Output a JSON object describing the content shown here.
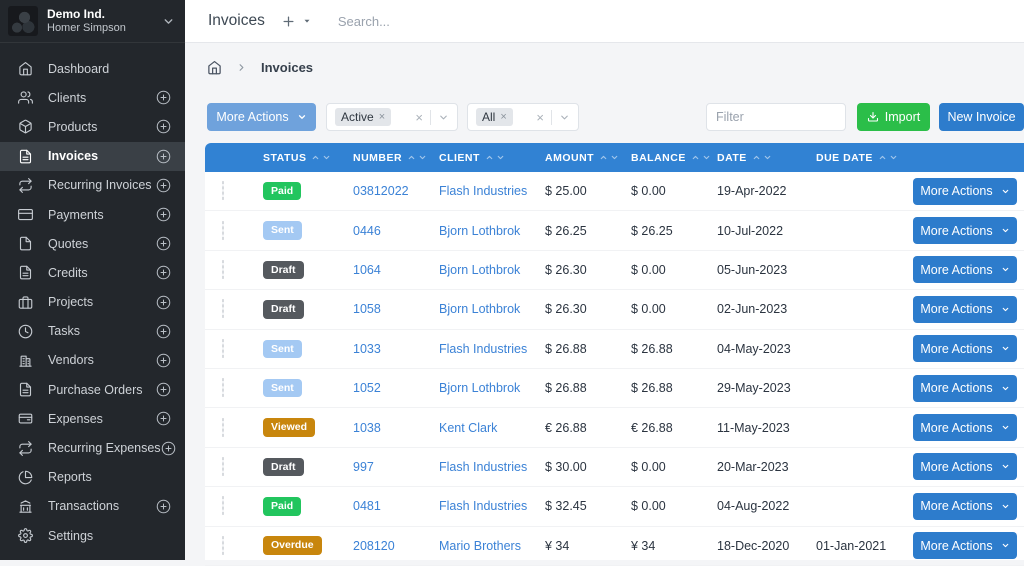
{
  "brand": {
    "company": "Demo Ind.",
    "user": "Homer Simpson"
  },
  "topbar": {
    "title": "Invoices",
    "search_placeholder": "Search..."
  },
  "sidebar": {
    "items": [
      {
        "label": "Dashboard",
        "icon": "home",
        "plus": false,
        "active": false
      },
      {
        "label": "Clients",
        "icon": "users",
        "plus": true,
        "active": false
      },
      {
        "label": "Products",
        "icon": "package",
        "plus": true,
        "active": false
      },
      {
        "label": "Invoices",
        "icon": "file-text",
        "plus": true,
        "active": true
      },
      {
        "label": "Recurring Invoices",
        "icon": "repeat",
        "plus": true,
        "active": false
      },
      {
        "label": "Payments",
        "icon": "credit-card",
        "plus": true,
        "active": false
      },
      {
        "label": "Quotes",
        "icon": "file",
        "plus": true,
        "active": false
      },
      {
        "label": "Credits",
        "icon": "file-text",
        "plus": true,
        "active": false
      },
      {
        "label": "Projects",
        "icon": "briefcase",
        "plus": true,
        "active": false
      },
      {
        "label": "Tasks",
        "icon": "clock",
        "plus": true,
        "active": false
      },
      {
        "label": "Vendors",
        "icon": "building",
        "plus": true,
        "active": false
      },
      {
        "label": "Purchase Orders",
        "icon": "file-text",
        "plus": true,
        "active": false
      },
      {
        "label": "Expenses",
        "icon": "wallet",
        "plus": true,
        "active": false
      },
      {
        "label": "Recurring Expenses",
        "icon": "repeat",
        "plus": true,
        "active": false
      },
      {
        "label": "Reports",
        "icon": "pie-chart",
        "plus": false,
        "active": false
      },
      {
        "label": "Transactions",
        "icon": "bank",
        "plus": true,
        "active": false
      },
      {
        "label": "Settings",
        "icon": "gear",
        "plus": false,
        "active": false
      }
    ]
  },
  "breadcrumb": {
    "current": "Invoices"
  },
  "toolbar": {
    "more_actions_label": "More Actions",
    "filters": [
      {
        "name": "status-filter",
        "chips": [
          "Active"
        ]
      },
      {
        "name": "type-filter",
        "chips": [
          "All"
        ]
      }
    ],
    "filter_placeholder": "Filter",
    "import_label": "Import",
    "new_invoice_label": "New Invoice"
  },
  "table": {
    "columns": [
      "STATUS",
      "NUMBER",
      "CLIENT",
      "AMOUNT",
      "BALANCE",
      "DATE",
      "DUE DATE"
    ],
    "row_action_label": "More Actions",
    "rows": [
      {
        "status": "Paid",
        "status_key": "paid",
        "number": "03812022",
        "client": "Flash Industries",
        "amount": "$ 25.00",
        "balance": "$ 0.00",
        "date": "19-Apr-2022",
        "due_date": ""
      },
      {
        "status": "Sent",
        "status_key": "sent",
        "number": "0446",
        "client": "Bjorn Lothbrok",
        "amount": "$ 26.25",
        "balance": "$ 26.25",
        "date": "10-Jul-2022",
        "due_date": ""
      },
      {
        "status": "Draft",
        "status_key": "draft",
        "number": "1064",
        "client": "Bjorn Lothbrok",
        "amount": "$ 26.30",
        "balance": "$ 0.00",
        "date": "05-Jun-2023",
        "due_date": ""
      },
      {
        "status": "Draft",
        "status_key": "draft",
        "number": "1058",
        "client": "Bjorn Lothbrok",
        "amount": "$ 26.30",
        "balance": "$ 0.00",
        "date": "02-Jun-2023",
        "due_date": ""
      },
      {
        "status": "Sent",
        "status_key": "sent",
        "number": "1033",
        "client": "Flash Industries",
        "amount": "$ 26.88",
        "balance": "$ 26.88",
        "date": "04-May-2023",
        "due_date": ""
      },
      {
        "status": "Sent",
        "status_key": "sent",
        "number": "1052",
        "client": "Bjorn Lothbrok",
        "amount": "$ 26.88",
        "balance": "$ 26.88",
        "date": "29-May-2023",
        "due_date": ""
      },
      {
        "status": "Viewed",
        "status_key": "viewed",
        "number": "1038",
        "client": "Kent Clark",
        "amount": "€ 26.88",
        "balance": "€ 26.88",
        "date": "11-May-2023",
        "due_date": ""
      },
      {
        "status": "Draft",
        "status_key": "draft",
        "number": "997",
        "client": "Flash Industries",
        "amount": "$ 30.00",
        "balance": "$ 0.00",
        "date": "20-Mar-2023",
        "due_date": ""
      },
      {
        "status": "Paid",
        "status_key": "paid",
        "number": "0481",
        "client": "Flash Industries",
        "amount": "$ 32.45",
        "balance": "$ 0.00",
        "date": "04-Aug-2022",
        "due_date": ""
      },
      {
        "status": "Overdue",
        "status_key": "overdue",
        "number": "208120",
        "client": "Mario Brothers",
        "amount": "¥ 34",
        "balance": "¥ 34",
        "date": "18-Dec-2020",
        "due_date": "01-Jan-2021"
      }
    ]
  },
  "colors": {
    "header_blue": "#3182d3",
    "link_blue": "#3b82d6",
    "status": {
      "paid": "#22c55e",
      "sent": "#a4c9f3",
      "draft": "#55595e",
      "viewed": "#c8860d",
      "overdue": "#c8860d"
    }
  }
}
